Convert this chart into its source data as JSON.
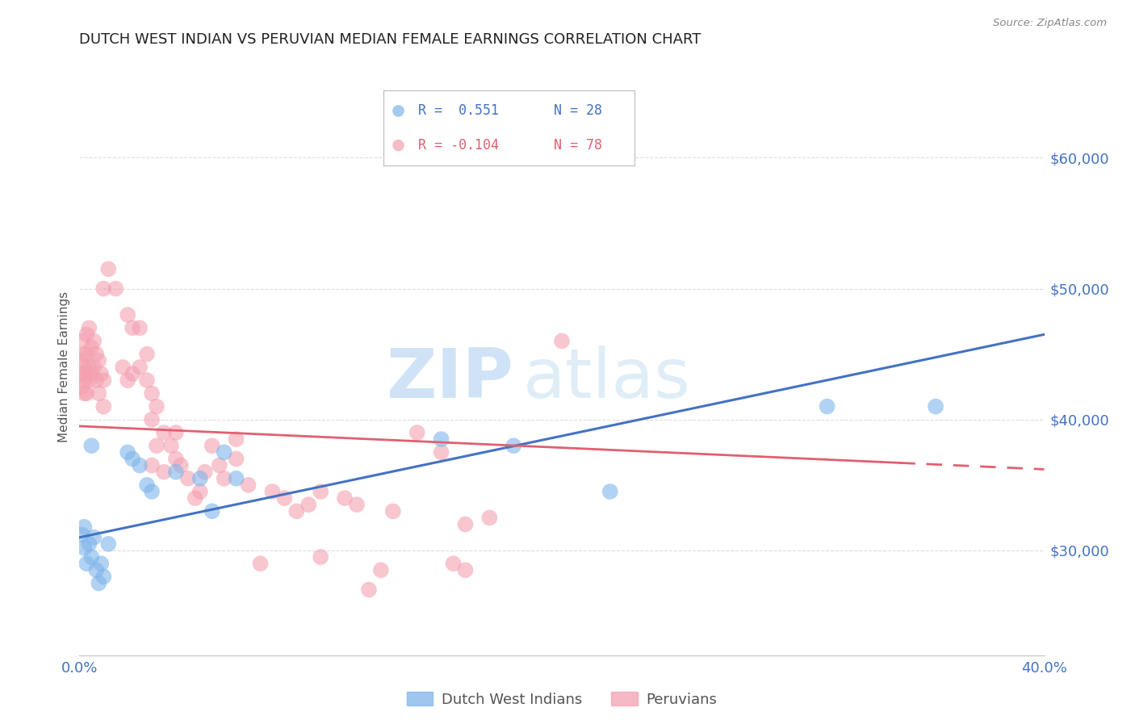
{
  "title": "DUTCH WEST INDIAN VS PERUVIAN MEDIAN FEMALE EARNINGS CORRELATION CHART",
  "source": "Source: ZipAtlas.com",
  "ylabel": "Median Female Earnings",
  "x_min": 0.0,
  "x_max": 0.4,
  "y_min": 22000,
  "y_max": 66000,
  "ytick_values": [
    30000,
    40000,
    50000,
    60000
  ],
  "ytick_labels": [
    "$30,000",
    "$40,000",
    "$50,000",
    "$60,000"
  ],
  "xtick_values": [
    0.0,
    0.1,
    0.2,
    0.3,
    0.4
  ],
  "xtick_labels": [
    "0.0%",
    "",
    "",
    "",
    "40.0%"
  ],
  "legend_blue_r": "R =  0.551",
  "legend_blue_n": "N = 28",
  "legend_pink_r": "R = -0.104",
  "legend_pink_n": "N = 78",
  "label_blue": "Dutch West Indians",
  "label_pink": "Peruvians",
  "blue_color": "#7EB4EA",
  "pink_color": "#F4A0B0",
  "blue_line_color": "#4472C4",
  "pink_line_color": "#E06070",
  "blue_scatter": [
    [
      0.001,
      31200
    ],
    [
      0.002,
      30200
    ],
    [
      0.002,
      31800
    ],
    [
      0.003,
      29000
    ],
    [
      0.004,
      30500
    ],
    [
      0.005,
      29500
    ],
    [
      0.006,
      31000
    ],
    [
      0.007,
      28500
    ],
    [
      0.008,
      27500
    ],
    [
      0.009,
      29000
    ],
    [
      0.01,
      28000
    ],
    [
      0.012,
      30500
    ],
    [
      0.02,
      37500
    ],
    [
      0.022,
      37000
    ],
    [
      0.025,
      36500
    ],
    [
      0.028,
      35000
    ],
    [
      0.03,
      34500
    ],
    [
      0.04,
      36000
    ],
    [
      0.05,
      35500
    ],
    [
      0.055,
      33000
    ],
    [
      0.06,
      37500
    ],
    [
      0.065,
      35500
    ],
    [
      0.15,
      38500
    ],
    [
      0.18,
      38000
    ],
    [
      0.22,
      34500
    ],
    [
      0.31,
      41000
    ],
    [
      0.355,
      41000
    ],
    [
      0.005,
      38000
    ]
  ],
  "pink_scatter": [
    [
      0.001,
      46000
    ],
    [
      0.001,
      44500
    ],
    [
      0.001,
      43500
    ],
    [
      0.001,
      42500
    ],
    [
      0.002,
      45000
    ],
    [
      0.002,
      44000
    ],
    [
      0.002,
      43000
    ],
    [
      0.002,
      42000
    ],
    [
      0.003,
      46500
    ],
    [
      0.003,
      45000
    ],
    [
      0.003,
      43500
    ],
    [
      0.003,
      42000
    ],
    [
      0.004,
      47000
    ],
    [
      0.004,
      44000
    ],
    [
      0.004,
      43000
    ],
    [
      0.005,
      45500
    ],
    [
      0.005,
      43500
    ],
    [
      0.006,
      46000
    ],
    [
      0.006,
      44000
    ],
    [
      0.007,
      45000
    ],
    [
      0.007,
      43000
    ],
    [
      0.008,
      44500
    ],
    [
      0.008,
      42000
    ],
    [
      0.009,
      43500
    ],
    [
      0.01,
      43000
    ],
    [
      0.01,
      41000
    ],
    [
      0.01,
      50000
    ],
    [
      0.012,
      51500
    ],
    [
      0.015,
      50000
    ],
    [
      0.018,
      44000
    ],
    [
      0.02,
      48000
    ],
    [
      0.02,
      43000
    ],
    [
      0.022,
      47000
    ],
    [
      0.022,
      43500
    ],
    [
      0.025,
      44000
    ],
    [
      0.025,
      47000
    ],
    [
      0.028,
      43000
    ],
    [
      0.028,
      45000
    ],
    [
      0.03,
      42000
    ],
    [
      0.03,
      40000
    ],
    [
      0.03,
      36500
    ],
    [
      0.032,
      41000
    ],
    [
      0.032,
      38000
    ],
    [
      0.035,
      39000
    ],
    [
      0.035,
      36000
    ],
    [
      0.038,
      38000
    ],
    [
      0.04,
      37000
    ],
    [
      0.04,
      39000
    ],
    [
      0.042,
      36500
    ],
    [
      0.045,
      35500
    ],
    [
      0.048,
      34000
    ],
    [
      0.05,
      34500
    ],
    [
      0.052,
      36000
    ],
    [
      0.055,
      38000
    ],
    [
      0.058,
      36500
    ],
    [
      0.06,
      35500
    ],
    [
      0.065,
      38500
    ],
    [
      0.065,
      37000
    ],
    [
      0.07,
      35000
    ],
    [
      0.075,
      29000
    ],
    [
      0.08,
      34500
    ],
    [
      0.085,
      34000
    ],
    [
      0.09,
      33000
    ],
    [
      0.095,
      33500
    ],
    [
      0.1,
      34500
    ],
    [
      0.1,
      29500
    ],
    [
      0.11,
      34000
    ],
    [
      0.115,
      33500
    ],
    [
      0.12,
      27000
    ],
    [
      0.125,
      28500
    ],
    [
      0.13,
      33000
    ],
    [
      0.14,
      39000
    ],
    [
      0.15,
      37500
    ],
    [
      0.155,
      29000
    ],
    [
      0.16,
      28500
    ],
    [
      0.16,
      32000
    ],
    [
      0.17,
      32500
    ],
    [
      0.2,
      46000
    ]
  ],
  "blue_trend_x": [
    0.0,
    0.4
  ],
  "blue_trend_y": [
    31000,
    46500
  ],
  "pink_trend_x": [
    0.0,
    0.4
  ],
  "pink_trend_y": [
    39500,
    36200
  ],
  "pink_trend_dashed_start": 0.34,
  "watermark_zip": "ZIP",
  "watermark_atlas": "atlas",
  "background_color": "#FFFFFF",
  "grid_color": "#DDDDDD",
  "axis_color": "#CCCCCC"
}
